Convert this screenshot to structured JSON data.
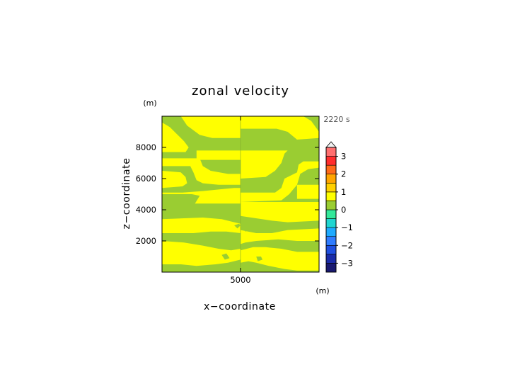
{
  "chart_data": {
    "type": "heatmap",
    "title": "zonal velocity",
    "time_label": "2220 s",
    "xlabel": "x−coordinate",
    "ylabel": "z−coordinate",
    "x_unit": "(m)",
    "y_unit": "(m)",
    "xlim": [
      0,
      10000
    ],
    "ylim": [
      0,
      10000
    ],
    "x_ticks": [
      {
        "value": 5000,
        "label": "5000"
      }
    ],
    "y_ticks": [
      {
        "value": 2000,
        "label": "2000"
      },
      {
        "value": 4000,
        "label": "4000"
      },
      {
        "value": 6000,
        "label": "6000"
      },
      {
        "value": 8000,
        "label": "8000"
      }
    ],
    "colorbar": {
      "levels": [
        -3.5,
        -3,
        -2.5,
        -2,
        -1.5,
        -1,
        -0.5,
        0,
        0.5,
        1,
        1.5,
        2,
        2.5,
        3,
        3.5
      ],
      "colors": [
        "#191970",
        "#1a2ba8",
        "#1f4fe0",
        "#2f7cff",
        "#1eaaff",
        "#20d5d0",
        "#34e89a",
        "#9acd32",
        "#ffff00",
        "#ffd000",
        "#ffa500",
        "#ff6a1a",
        "#ff2d2d",
        "#ff6f6f",
        "#ffb6b6"
      ],
      "tick_values": [
        -3,
        -2,
        -1,
        0,
        1,
        2,
        3
      ],
      "tick_labels": [
        "−3",
        "−2",
        "−1",
        "0",
        "1",
        "2",
        "3"
      ],
      "extend": "max"
    },
    "field_colors": {
      "negative": "#9acd32",
      "positive": "#ffff00"
    },
    "regions": [
      {
        "sign": "positive",
        "points": [
          [
            0,
            10000
          ],
          [
            1200,
            10000
          ],
          [
            1600,
            9400
          ],
          [
            2400,
            8800
          ],
          [
            3200,
            8600
          ],
          [
            5000,
            8600
          ],
          [
            5000,
            10000
          ]
        ]
      },
      {
        "sign": "positive",
        "points": [
          [
            5000,
            10000
          ],
          [
            9000,
            10000
          ],
          [
            9500,
            9700
          ],
          [
            10000,
            9000
          ],
          [
            10000,
            8600
          ],
          [
            8600,
            8500
          ],
          [
            8000,
            9000
          ],
          [
            7300,
            9200
          ],
          [
            5000,
            9200
          ]
        ]
      },
      {
        "sign": "positive",
        "points": [
          [
            0,
            9600
          ],
          [
            500,
            9300
          ],
          [
            900,
            8900
          ],
          [
            1400,
            8400
          ],
          [
            1700,
            8000
          ],
          [
            1500,
            7700
          ],
          [
            0,
            7700
          ]
        ]
      },
      {
        "sign": "positive",
        "points": [
          [
            2200,
            7800
          ],
          [
            5000,
            7800
          ],
          [
            5000,
            7200
          ],
          [
            2200,
            7200
          ]
        ]
      },
      {
        "sign": "positive",
        "points": [
          [
            5000,
            7800
          ],
          [
            8000,
            7800
          ],
          [
            7800,
            7600
          ],
          [
            7600,
            7000
          ],
          [
            7200,
            6500
          ],
          [
            6600,
            6100
          ],
          [
            5000,
            6000
          ]
        ]
      },
      {
        "sign": "positive",
        "points": [
          [
            2400,
            7300
          ],
          [
            2600,
            6800
          ],
          [
            3100,
            6500
          ],
          [
            4200,
            6300
          ],
          [
            5000,
            6300
          ],
          [
            5000,
            5600
          ],
          [
            3600,
            5600
          ],
          [
            2600,
            5700
          ],
          [
            2200,
            5900
          ],
          [
            2000,
            6400
          ],
          [
            1800,
            6800
          ],
          [
            0,
            6800
          ],
          [
            0,
            6500
          ],
          [
            1200,
            6400
          ],
          [
            1500,
            6100
          ],
          [
            1600,
            5700
          ],
          [
            1300,
            5500
          ],
          [
            0,
            5400
          ],
          [
            0,
            5100
          ],
          [
            1300,
            5100
          ],
          [
            2600,
            5200
          ],
          [
            3600,
            5300
          ],
          [
            4600,
            5400
          ],
          [
            5000,
            5400
          ],
          [
            5000,
            4400
          ],
          [
            2100,
            4400
          ],
          [
            2400,
            4900
          ],
          [
            1900,
            5000
          ],
          [
            0,
            5000
          ],
          [
            0,
            7300
          ]
        ]
      },
      {
        "sign": "positive",
        "points": [
          [
            5000,
            6200
          ],
          [
            5000,
            5100
          ],
          [
            7200,
            5100
          ],
          [
            7600,
            5400
          ],
          [
            7800,
            6000
          ],
          [
            8600,
            6400
          ],
          [
            8700,
            6900
          ],
          [
            9000,
            7100
          ],
          [
            10000,
            7100
          ],
          [
            10000,
            6700
          ],
          [
            9300,
            6600
          ],
          [
            8800,
            6300
          ],
          [
            8600,
            5600
          ],
          [
            8100,
            5000
          ],
          [
            7600,
            4600
          ],
          [
            5000,
            4500
          ]
        ]
      },
      {
        "sign": "positive",
        "points": [
          [
            8600,
            5600
          ],
          [
            10000,
            5600
          ],
          [
            10000,
            4700
          ],
          [
            8600,
            4700
          ]
        ]
      },
      {
        "sign": "positive",
        "points": [
          [
            10000,
            4500
          ],
          [
            5000,
            4500
          ],
          [
            5000,
            3600
          ],
          [
            7000,
            3300
          ],
          [
            8000,
            3200
          ],
          [
            10000,
            3300
          ]
        ]
      },
      {
        "sign": "positive",
        "points": [
          [
            0,
            3400
          ],
          [
            2600,
            3500
          ],
          [
            3800,
            3400
          ],
          [
            4600,
            3200
          ],
          [
            5000,
            3100
          ],
          [
            5000,
            2500
          ],
          [
            4100,
            2600
          ],
          [
            3100,
            2600
          ],
          [
            2000,
            2500
          ],
          [
            0,
            2500
          ]
        ]
      },
      {
        "sign": "positive",
        "points": [
          [
            5000,
            2700
          ],
          [
            6000,
            2500
          ],
          [
            7000,
            2500
          ],
          [
            8000,
            2700
          ],
          [
            10000,
            2800
          ],
          [
            10000,
            2000
          ],
          [
            8600,
            2000
          ],
          [
            7400,
            2100
          ],
          [
            6000,
            2000
          ],
          [
            5300,
            1900
          ],
          [
            5000,
            1800
          ]
        ]
      },
      {
        "sign": "positive",
        "points": [
          [
            0,
            2000
          ],
          [
            1400,
            1900
          ],
          [
            2600,
            1700
          ],
          [
            3600,
            1500
          ],
          [
            4400,
            1400
          ],
          [
            5000,
            1500
          ],
          [
            5000,
            800
          ],
          [
            4200,
            600
          ],
          [
            3400,
            500
          ],
          [
            2200,
            400
          ],
          [
            1200,
            500
          ],
          [
            0,
            500
          ]
        ]
      },
      {
        "sign": "positive",
        "points": [
          [
            5000,
            1400
          ],
          [
            5800,
            1600
          ],
          [
            6600,
            1600
          ],
          [
            7600,
            1500
          ],
          [
            8600,
            1300
          ],
          [
            10000,
            1300
          ],
          [
            10000,
            100
          ],
          [
            8600,
            100
          ],
          [
            7800,
            200
          ],
          [
            6800,
            400
          ],
          [
            6000,
            600
          ],
          [
            5500,
            700
          ],
          [
            5000,
            600
          ]
        ]
      },
      {
        "sign": "negative",
        "points": [
          [
            4600,
            3000
          ],
          [
            4900,
            3100
          ],
          [
            5000,
            3000
          ],
          [
            4800,
            2800
          ]
        ]
      },
      {
        "sign": "negative",
        "points": [
          [
            5200,
            2900
          ],
          [
            5500,
            2900
          ],
          [
            5600,
            2700
          ],
          [
            5300,
            2600
          ]
        ]
      },
      {
        "sign": "negative",
        "points": [
          [
            3800,
            1100
          ],
          [
            4100,
            1200
          ],
          [
            4300,
            900
          ],
          [
            4000,
            800
          ]
        ]
      },
      {
        "sign": "negative",
        "points": [
          [
            6000,
            1000
          ],
          [
            6300,
            1000
          ],
          [
            6400,
            800
          ],
          [
            6100,
            700
          ]
        ]
      }
    ]
  }
}
